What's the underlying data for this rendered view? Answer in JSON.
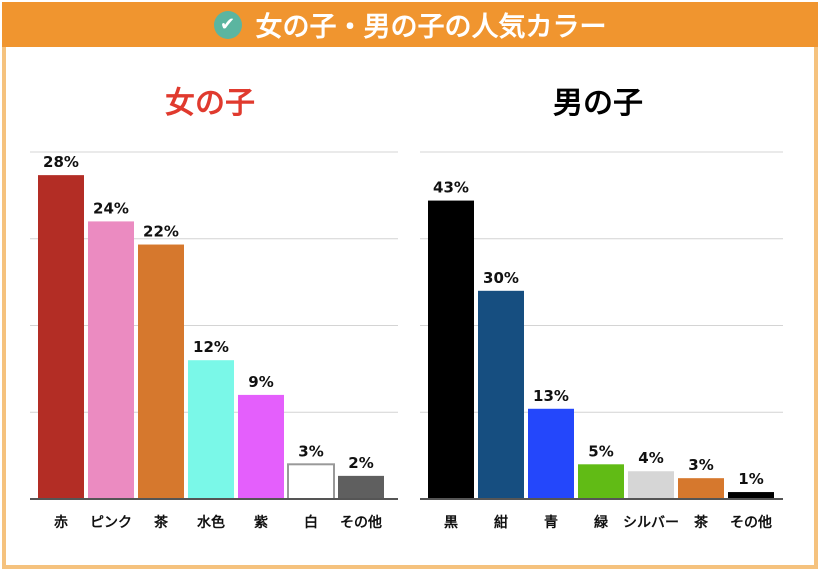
{
  "header": {
    "title": "女の子・男の子の人気カラー",
    "icon": "check-circle-icon"
  },
  "chart_data": [
    {
      "type": "bar",
      "title": "女の子",
      "title_color": "#e03a2e",
      "ylim": [
        0,
        30
      ],
      "grid": true,
      "categories": [
        "赤",
        "ピンク",
        "茶",
        "水色",
        "紫",
        "白",
        "その他"
      ],
      "values": [
        28,
        24,
        22,
        12,
        9,
        3,
        2
      ],
      "data_labels": [
        "28%",
        "24%",
        "22%",
        "12%",
        "9%",
        "3%",
        "2%"
      ],
      "colors": [
        "#b32d25",
        "#eb8bc1",
        "#d6782d",
        "#7af8e8",
        "#e45ffc",
        "#ffffff",
        "#5f5f5f"
      ]
    },
    {
      "type": "bar",
      "title": "男の子",
      "title_color": "#000000",
      "ylim": [
        0,
        50
      ],
      "grid": true,
      "categories": [
        "黒",
        "紺",
        "青",
        "緑",
        "シルバー",
        "茶",
        "その他"
      ],
      "values": [
        43,
        30,
        13,
        5,
        4,
        3,
        1
      ],
      "data_labels": [
        "43%",
        "30%",
        "13%",
        "5%",
        "4%",
        "3%",
        "1%"
      ],
      "colors": [
        "#000000",
        "#164e80",
        "#2447fb",
        "#61bb15",
        "#d6d6d6",
        "#d6782d",
        "#000000"
      ]
    }
  ]
}
